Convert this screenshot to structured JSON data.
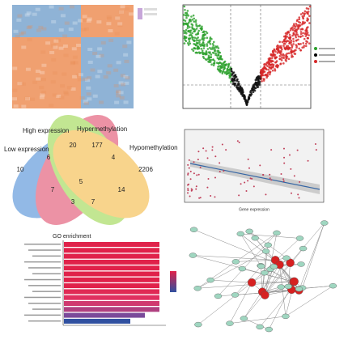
{
  "venn": {
    "labels": [
      "High expression",
      "Hypermethylation",
      "Low expression",
      "Hypomethylation"
    ],
    "counts": [
      "10",
      "20",
      "177",
      "2206",
      "6",
      "4",
      "7",
      "14",
      "5",
      "3",
      "7"
    ]
  },
  "scatter": {
    "x_label": "Gene expression"
  },
  "bar": {
    "title": "GO enrichment"
  }
}
